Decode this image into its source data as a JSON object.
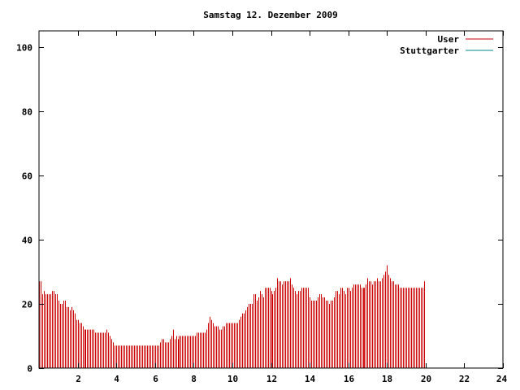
{
  "chart_data": {
    "type": "bar",
    "title": "Samstag 12. Dezember 2009",
    "xlabel": "",
    "ylabel": "",
    "xlim": [
      0,
      24
    ],
    "ylim": [
      0,
      105
    ],
    "x_ticks": [
      2,
      4,
      6,
      8,
      10,
      12,
      14,
      16,
      18,
      20,
      22,
      24
    ],
    "y_ticks": [
      0,
      20,
      40,
      60,
      80,
      100
    ],
    "legend_position": "top-right",
    "grid": false,
    "sample_interval_minutes": 5,
    "series": [
      {
        "name": "User",
        "color": "#cc0000",
        "values": [
          27,
          27,
          23,
          24,
          23,
          23,
          23,
          23,
          24,
          24,
          23,
          23,
          21,
          20,
          20,
          21,
          21,
          19,
          19,
          18,
          19,
          18,
          17,
          15,
          15,
          14,
          14,
          13,
          12,
          12,
          12,
          12,
          12,
          12,
          12,
          11,
          11,
          11,
          11,
          11,
          11,
          11,
          12,
          11,
          10,
          9,
          8,
          7,
          7,
          7,
          7,
          7,
          7,
          7,
          7,
          7,
          7,
          7,
          7,
          7,
          7,
          7,
          7,
          7,
          7,
          7,
          7,
          7,
          7,
          7,
          7,
          7,
          7,
          7,
          7,
          8,
          9,
          9,
          8,
          8,
          8,
          9,
          10,
          12,
          9,
          10,
          9,
          10,
          10,
          10,
          10,
          10,
          10,
          10,
          10,
          10,
          10,
          10,
          11,
          11,
          11,
          11,
          11,
          11,
          12,
          14,
          16,
          15,
          14,
          13,
          13,
          13,
          12,
          12,
          13,
          13,
          14,
          14,
          14,
          14,
          14,
          14,
          14,
          14,
          15,
          16,
          17,
          17,
          18,
          19,
          20,
          20,
          20,
          23,
          23,
          21,
          22,
          24,
          23,
          22,
          25,
          25,
          25,
          25,
          24,
          23,
          24,
          25,
          28,
          27,
          27,
          26,
          27,
          27,
          27,
          27,
          28,
          26,
          25,
          24,
          23,
          24,
          24,
          25,
          25,
          25,
          25,
          25,
          22,
          21,
          21,
          21,
          21,
          22,
          23,
          23,
          22,
          22,
          21,
          21,
          20,
          21,
          21,
          22,
          24,
          24,
          23,
          25,
          25,
          24,
          23,
          25,
          25,
          24,
          25,
          26,
          26,
          26,
          26,
          26,
          25,
          25,
          25,
          26,
          28,
          27,
          27,
          26,
          27,
          27,
          28,
          27,
          27,
          28,
          29,
          30,
          32,
          29,
          28,
          27,
          27,
          26,
          26,
          26,
          25,
          25,
          25,
          25,
          25,
          25,
          25,
          25,
          25,
          25,
          25,
          25,
          25,
          25,
          25,
          27
        ]
      },
      {
        "name": "Stuttgarter",
        "color": "#008b8b",
        "values": []
      }
    ]
  }
}
